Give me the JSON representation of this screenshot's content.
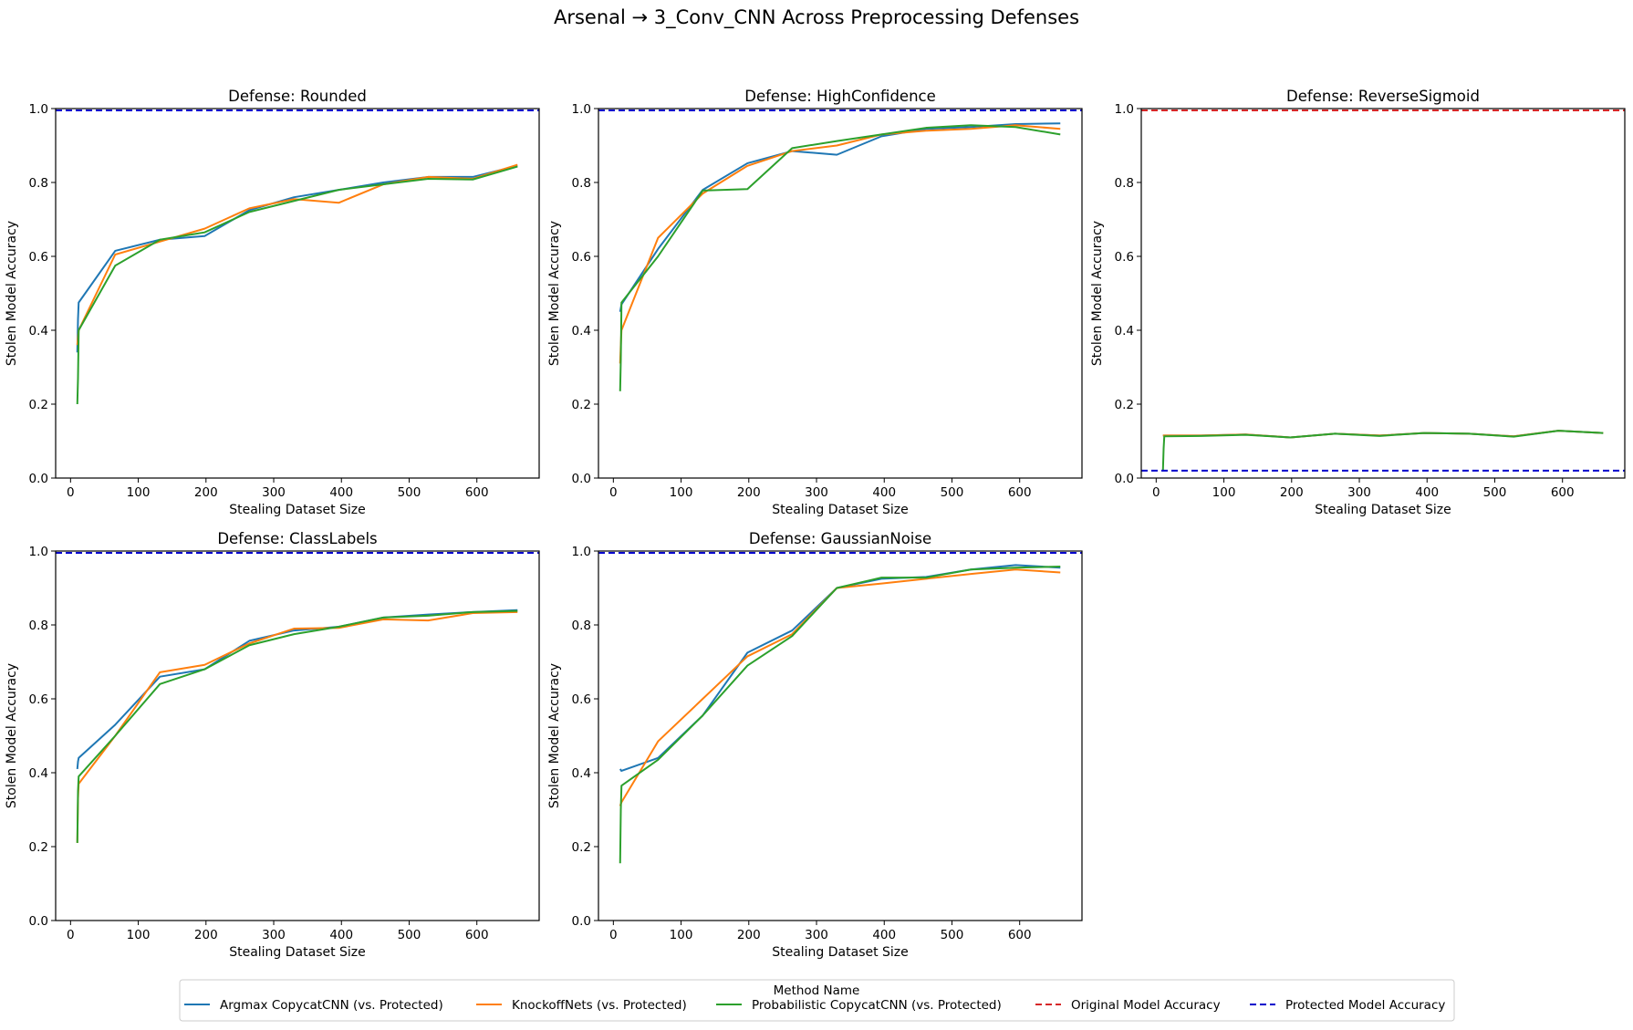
{
  "figure": {
    "title": "Arsenal → 3_Conv_CNN Across Preprocessing Defenses"
  },
  "legend": {
    "title": "Method Name",
    "entries": [
      {
        "label": "Argmax CopycatCNN (vs. Protected)",
        "color": "#1f77b4",
        "dash": "solid"
      },
      {
        "label": "KnockoffNets (vs. Protected)",
        "color": "#ff7f0e",
        "dash": "solid"
      },
      {
        "label": "Probabilistic CopycatCNN (vs. Protected)",
        "color": "#2ca02c",
        "dash": "solid"
      },
      {
        "label": "Original Model Accuracy",
        "color": "#d62728",
        "dash": "dashed"
      },
      {
        "label": "Protected Model Accuracy",
        "color": "#0000cc",
        "dash": "dashed"
      }
    ]
  },
  "chart_data": [
    {
      "type": "line",
      "title": "Defense: Rounded",
      "xlabel": "Stealing Dataset Size",
      "ylabel": "Stolen Model Accuracy",
      "xlim": [
        -22,
        692
      ],
      "ylim": [
        0,
        1
      ],
      "xticks": [
        0,
        100,
        200,
        300,
        400,
        500,
        600
      ],
      "yticks": [
        0.0,
        0.2,
        0.4,
        0.6,
        0.8,
        1.0
      ],
      "hlines": [
        {
          "name": "Original Model Accuracy",
          "y": 0.995,
          "color": "#d62728"
        },
        {
          "name": "Protected Model Accuracy",
          "y": 0.995,
          "color": "#0000cc"
        }
      ],
      "series": [
        {
          "name": "Argmax CopycatCNN (vs. Protected)",
          "color": "#1f77b4",
          "x": [
            10,
            11,
            12,
            66,
            132,
            198,
            264,
            330,
            396,
            462,
            528,
            594,
            660
          ],
          "y": [
            0.34,
            0.43,
            0.475,
            0.615,
            0.645,
            0.655,
            0.725,
            0.76,
            0.78,
            0.8,
            0.815,
            0.815,
            0.845
          ]
        },
        {
          "name": "KnockoffNets (vs. Protected)",
          "color": "#ff7f0e",
          "x": [
            10,
            11,
            12,
            66,
            132,
            198,
            264,
            330,
            396,
            462,
            528,
            594,
            660
          ],
          "y": [
            0.36,
            0.38,
            0.4,
            0.605,
            0.64,
            0.675,
            0.73,
            0.755,
            0.745,
            0.795,
            0.815,
            0.81,
            0.848
          ]
        },
        {
          "name": "Probabilistic CopycatCNN (vs. Protected)",
          "color": "#2ca02c",
          "x": [
            10,
            11,
            12,
            66,
            132,
            198,
            264,
            330,
            396,
            462,
            528,
            594,
            660
          ],
          "y": [
            0.2,
            0.27,
            0.4,
            0.575,
            0.645,
            0.665,
            0.72,
            0.75,
            0.78,
            0.795,
            0.81,
            0.808,
            0.843
          ]
        }
      ]
    },
    {
      "type": "line",
      "title": "Defense: HighConfidence",
      "xlabel": "Stealing Dataset Size",
      "ylabel": "Stolen Model Accuracy",
      "xlim": [
        -22,
        692
      ],
      "ylim": [
        0,
        1
      ],
      "xticks": [
        0,
        100,
        200,
        300,
        400,
        500,
        600
      ],
      "yticks": [
        0.0,
        0.2,
        0.4,
        0.6,
        0.8,
        1.0
      ],
      "hlines": [
        {
          "name": "Original Model Accuracy",
          "y": 0.995,
          "color": "#d62728"
        },
        {
          "name": "Protected Model Accuracy",
          "y": 0.995,
          "color": "#0000cc"
        }
      ],
      "series": [
        {
          "name": "Argmax CopycatCNN (vs. Protected)",
          "color": "#1f77b4",
          "x": [
            10,
            11,
            12,
            66,
            132,
            198,
            264,
            330,
            396,
            462,
            528,
            594,
            660
          ],
          "y": [
            0.45,
            0.46,
            0.47,
            0.62,
            0.78,
            0.852,
            0.885,
            0.875,
            0.925,
            0.945,
            0.95,
            0.958,
            0.96
          ]
        },
        {
          "name": "KnockoffNets (vs. Protected)",
          "color": "#ff7f0e",
          "x": [
            10,
            11,
            12,
            66,
            132,
            198,
            264,
            330,
            396,
            462,
            528,
            594,
            660
          ],
          "y": [
            0.31,
            0.36,
            0.4,
            0.65,
            0.77,
            0.845,
            0.885,
            0.9,
            0.93,
            0.94,
            0.945,
            0.955,
            0.945
          ]
        },
        {
          "name": "Probabilistic CopycatCNN (vs. Protected)",
          "color": "#2ca02c",
          "x": [
            10,
            11,
            12,
            66,
            132,
            198,
            264,
            330,
            396,
            462,
            528,
            594,
            660
          ],
          "y": [
            0.235,
            0.32,
            0.475,
            0.6,
            0.778,
            0.782,
            0.893,
            0.912,
            0.93,
            0.948,
            0.955,
            0.95,
            0.93
          ]
        }
      ]
    },
    {
      "type": "line",
      "title": "Defense: ReverseSigmoid",
      "xlabel": "Stealing Dataset Size",
      "ylabel": "Stolen Model Accuracy",
      "xlim": [
        -22,
        692
      ],
      "ylim": [
        0,
        1
      ],
      "xticks": [
        0,
        100,
        200,
        300,
        400,
        500,
        600
      ],
      "yticks": [
        0.0,
        0.2,
        0.4,
        0.6,
        0.8,
        1.0
      ],
      "hlines": [
        {
          "name": "Original Model Accuracy",
          "y": 0.995,
          "color": "#d62728"
        },
        {
          "name": "Protected Model Accuracy",
          "y": 0.02,
          "color": "#0000cc"
        }
      ],
      "series": [
        {
          "name": "Argmax CopycatCNN (vs. Protected)",
          "color": "#1f77b4",
          "x": [
            10,
            12,
            66,
            132,
            198,
            264,
            330,
            396,
            462,
            528,
            594,
            660
          ],
          "y": [
            0.115,
            0.115,
            0.115,
            0.118,
            0.11,
            0.12,
            0.115,
            0.122,
            0.12,
            0.113,
            0.128,
            0.122
          ]
        },
        {
          "name": "KnockoffNets (vs. Protected)",
          "color": "#ff7f0e",
          "x": [
            10,
            12,
            66,
            132,
            198,
            264,
            330,
            396,
            462,
            528,
            594,
            660
          ],
          "y": [
            0.115,
            0.115,
            0.115,
            0.118,
            0.11,
            0.12,
            0.115,
            0.122,
            0.12,
            0.113,
            0.128,
            0.122
          ]
        },
        {
          "name": "Probabilistic CopycatCNN (vs. Protected)",
          "color": "#2ca02c",
          "x": [
            10,
            11,
            12,
            66,
            132,
            198,
            264,
            330,
            396,
            462,
            528,
            594,
            660
          ],
          "y": [
            0.02,
            0.08,
            0.113,
            0.114,
            0.117,
            0.11,
            0.12,
            0.114,
            0.122,
            0.12,
            0.112,
            0.128,
            0.122
          ]
        }
      ]
    },
    {
      "type": "line",
      "title": "Defense: ClassLabels",
      "xlabel": "Stealing Dataset Size",
      "ylabel": "Stolen Model Accuracy",
      "xlim": [
        -22,
        692
      ],
      "ylim": [
        0,
        1
      ],
      "xticks": [
        0,
        100,
        200,
        300,
        400,
        500,
        600
      ],
      "yticks": [
        0.0,
        0.2,
        0.4,
        0.6,
        0.8,
        1.0
      ],
      "hlines": [
        {
          "name": "Original Model Accuracy",
          "y": 0.995,
          "color": "#d62728"
        },
        {
          "name": "Protected Model Accuracy",
          "y": 0.995,
          "color": "#0000cc"
        }
      ],
      "series": [
        {
          "name": "Argmax CopycatCNN (vs. Protected)",
          "color": "#1f77b4",
          "x": [
            10,
            11,
            12,
            66,
            132,
            198,
            264,
            330,
            396,
            462,
            528,
            594,
            660
          ],
          "y": [
            0.41,
            0.43,
            0.44,
            0.53,
            0.66,
            0.68,
            0.757,
            0.785,
            0.795,
            0.82,
            0.828,
            0.835,
            0.84
          ]
        },
        {
          "name": "KnockoffNets (vs. Protected)",
          "color": "#ff7f0e",
          "x": [
            10,
            11,
            12,
            66,
            132,
            198,
            264,
            330,
            396,
            462,
            528,
            594,
            660
          ],
          "y": [
            0.21,
            0.33,
            0.37,
            0.5,
            0.672,
            0.692,
            0.75,
            0.79,
            0.792,
            0.815,
            0.812,
            0.832,
            0.835
          ]
        },
        {
          "name": "Probabilistic CopycatCNN (vs. Protected)",
          "color": "#2ca02c",
          "x": [
            10,
            11,
            12,
            66,
            132,
            198,
            264,
            330,
            396,
            462,
            528,
            594,
            660
          ],
          "y": [
            0.21,
            0.35,
            0.39,
            0.5,
            0.64,
            0.68,
            0.745,
            0.775,
            0.795,
            0.82,
            0.825,
            0.835,
            0.838
          ]
        }
      ]
    },
    {
      "type": "line",
      "title": "Defense: GaussianNoise",
      "xlabel": "Stealing Dataset Size",
      "ylabel": "Stolen Model Accuracy",
      "xlim": [
        -22,
        692
      ],
      "ylim": [
        0,
        1
      ],
      "xticks": [
        0,
        100,
        200,
        300,
        400,
        500,
        600
      ],
      "yticks": [
        0.0,
        0.2,
        0.4,
        0.6,
        0.8,
        1.0
      ],
      "hlines": [
        {
          "name": "Original Model Accuracy",
          "y": 0.995,
          "color": "#d62728"
        },
        {
          "name": "Protected Model Accuracy",
          "y": 0.995,
          "color": "#0000cc"
        }
      ],
      "series": [
        {
          "name": "Argmax CopycatCNN (vs. Protected)",
          "color": "#1f77b4",
          "x": [
            10,
            12,
            66,
            132,
            198,
            264,
            330,
            396,
            462,
            528,
            594,
            660
          ],
          "y": [
            0.41,
            0.405,
            0.44,
            0.555,
            0.725,
            0.785,
            0.9,
            0.925,
            0.93,
            0.95,
            0.962,
            0.955
          ]
        },
        {
          "name": "KnockoffNets (vs. Protected)",
          "color": "#ff7f0e",
          "x": [
            10,
            12,
            66,
            132,
            198,
            264,
            330,
            396,
            462,
            528,
            594,
            660
          ],
          "y": [
            0.31,
            0.32,
            0.485,
            0.6,
            0.715,
            0.775,
            0.9,
            0.912,
            0.925,
            0.938,
            0.95,
            0.942
          ]
        },
        {
          "name": "Probabilistic CopycatCNN (vs. Protected)",
          "color": "#2ca02c",
          "x": [
            10,
            11,
            12,
            66,
            132,
            198,
            264,
            330,
            396,
            462,
            528,
            594,
            660
          ],
          "y": [
            0.155,
            0.3,
            0.365,
            0.435,
            0.555,
            0.69,
            0.77,
            0.9,
            0.928,
            0.928,
            0.95,
            0.955,
            0.958
          ]
        }
      ]
    }
  ]
}
